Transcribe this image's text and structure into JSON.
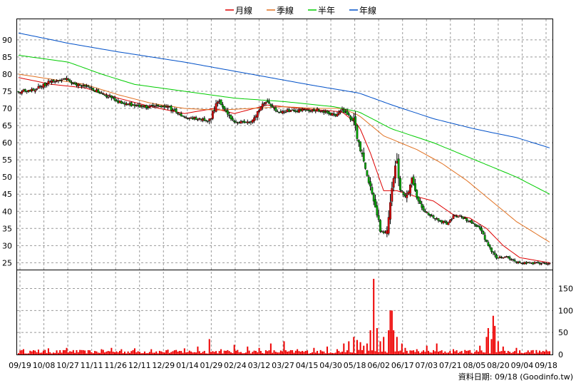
{
  "chart_data": [
    {
      "type": "candlestick",
      "legend": {
        "placement": "top-center",
        "entries": [
          {
            "name": "月線",
            "color": "#dd0000"
          },
          {
            "name": "季線",
            "color": "#e07020"
          },
          {
            "name": "半年",
            "color": "#00cc00"
          },
          {
            "name": "年線",
            "color": "#0050c8"
          }
        ]
      },
      "ylim": [
        23,
        96
      ],
      "yticks": [
        25,
        30,
        35,
        40,
        45,
        50,
        55,
        60,
        65,
        70,
        75,
        80,
        85,
        90
      ],
      "grid": true,
      "colors": {
        "up": "#dd0000",
        "down": "#00aa00",
        "border": "#000000",
        "grid": "#999999"
      },
      "x_tick_labels": [
        "09/19",
        "10/08",
        "10/27",
        "11/11",
        "11/26",
        "12/11",
        "12/29",
        "01/14",
        "01/29",
        "02/24",
        "03/12",
        "03/27",
        "04/15",
        "04/30",
        "05/18",
        "06/02",
        "06/17",
        "07/03",
        "07/21",
        "08/05",
        "08/20",
        "09/04",
        "09/18"
      ],
      "price_keypoints": [
        [
          0,
          75
        ],
        [
          10,
          75.5
        ],
        [
          20,
          78
        ],
        [
          28,
          78.5
        ],
        [
          36,
          77
        ],
        [
          50,
          74.5
        ],
        [
          62,
          71.5
        ],
        [
          75,
          70.5
        ],
        [
          90,
          70.5
        ],
        [
          100,
          67.5
        ],
        [
          115,
          66.5
        ],
        [
          120,
          72.5
        ],
        [
          130,
          66
        ],
        [
          140,
          66
        ],
        [
          145,
          70
        ],
        [
          150,
          72.5
        ],
        [
          155,
          69
        ],
        [
          170,
          69.5
        ],
        [
          180,
          69.5
        ],
        [
          190,
          68
        ],
        [
          195,
          69.5
        ],
        [
          202,
          66.5
        ],
        [
          205,
          60
        ],
        [
          210,
          50
        ],
        [
          215,
          42
        ],
        [
          218,
          34
        ],
        [
          222,
          34
        ],
        [
          226,
          50
        ],
        [
          228,
          55
        ],
        [
          230,
          46
        ],
        [
          234,
          44
        ],
        [
          237,
          49.5
        ],
        [
          240,
          44
        ],
        [
          245,
          40
        ],
        [
          250,
          38
        ],
        [
          258,
          36.5
        ],
        [
          262,
          38.5
        ],
        [
          266,
          38.5
        ],
        [
          272,
          37
        ],
        [
          278,
          35
        ],
        [
          282,
          31
        ],
        [
          288,
          26.5
        ],
        [
          294,
          26.5
        ],
        [
          300,
          25
        ],
        [
          315,
          24.8
        ],
        [
          320,
          25
        ]
      ],
      "moving_averages": [
        {
          "name": "月線",
          "values": [
            [
              0,
              79
            ],
            [
              20,
              77
            ],
            [
              40,
              76
            ],
            [
              60,
              73
            ],
            [
              80,
              70.5
            ],
            [
              100,
              68.5
            ],
            [
              118,
              70
            ],
            [
              130,
              68.5
            ],
            [
              150,
              71
            ],
            [
              170,
              70
            ],
            [
              195,
              69
            ],
            [
              205,
              65
            ],
            [
              212,
              57
            ],
            [
              220,
              46
            ],
            [
              228,
              46
            ],
            [
              238,
              44.5
            ],
            [
              250,
              43
            ],
            [
              262,
              39
            ],
            [
              272,
              38
            ],
            [
              282,
              35
            ],
            [
              292,
              30
            ],
            [
              302,
              26.5
            ],
            [
              320,
              25
            ]
          ]
        },
        {
          "name": "季線",
          "values": [
            [
              0,
              80
            ],
            [
              20,
              78.5
            ],
            [
              40,
              77
            ],
            [
              60,
              74
            ],
            [
              80,
              71.5
            ],
            [
              100,
              70
            ],
            [
              120,
              69.5
            ],
            [
              140,
              70
            ],
            [
              160,
              70.5
            ],
            [
              180,
              70
            ],
            [
              195,
              70
            ],
            [
              205,
              68
            ],
            [
              220,
              62
            ],
            [
              240,
              58
            ],
            [
              255,
              54
            ],
            [
              270,
              49
            ],
            [
              285,
              43
            ],
            [
              300,
              37
            ],
            [
              320,
              31
            ]
          ]
        },
        {
          "name": "半年",
          "values": [
            [
              0,
              85.5
            ],
            [
              30,
              83.5
            ],
            [
              50,
              80
            ],
            [
              70,
              77
            ],
            [
              100,
              75
            ],
            [
              130,
              73
            ],
            [
              160,
              72
            ],
            [
              190,
              70.5
            ],
            [
              205,
              69
            ],
            [
              225,
              64
            ],
            [
              250,
              60
            ],
            [
              275,
              55
            ],
            [
              300,
              50
            ],
            [
              320,
              45
            ]
          ]
        },
        {
          "name": "年線",
          "values": [
            [
              0,
              92
            ],
            [
              30,
              89
            ],
            [
              60,
              86.5
            ],
            [
              100,
              83.5
            ],
            [
              140,
              80
            ],
            [
              180,
              76.5
            ],
            [
              205,
              74.5
            ],
            [
              225,
              71
            ],
            [
              250,
              67
            ],
            [
              275,
              64
            ],
            [
              300,
              61.5
            ],
            [
              320,
              58.5
            ]
          ]
        }
      ]
    },
    {
      "type": "bar",
      "ylim": [
        0,
        180
      ],
      "yticks": [
        0,
        50,
        100,
        150
      ],
      "ytick_labels": [
        "0",
        "50",
        "100",
        "150"
      ],
      "color": "#ee0000",
      "base_volume": 7,
      "spikes": [
        [
          3,
          12
        ],
        [
          12,
          11
        ],
        [
          18,
          14
        ],
        [
          29,
          15
        ],
        [
          33,
          10
        ],
        [
          40,
          9
        ],
        [
          50,
          12
        ],
        [
          56,
          15
        ],
        [
          62,
          12
        ],
        [
          70,
          14
        ],
        [
          80,
          12
        ],
        [
          90,
          11
        ],
        [
          100,
          14
        ],
        [
          108,
          18
        ],
        [
          115,
          35
        ],
        [
          122,
          12
        ],
        [
          130,
          22
        ],
        [
          138,
          18
        ],
        [
          145,
          15
        ],
        [
          152,
          25
        ],
        [
          160,
          30
        ],
        [
          168,
          12
        ],
        [
          178,
          15
        ],
        [
          186,
          18
        ],
        [
          192,
          12
        ],
        [
          196,
          25
        ],
        [
          199,
          30
        ],
        [
          202,
          40
        ],
        [
          204,
          33
        ],
        [
          206,
          28
        ],
        [
          208,
          20
        ],
        [
          210,
          25
        ],
        [
          212,
          55
        ],
        [
          214,
          172
        ],
        [
          216,
          60
        ],
        [
          218,
          30
        ],
        [
          220,
          40
        ],
        [
          223,
          55
        ],
        [
          224,
          100
        ],
        [
          225,
          100
        ],
        [
          226,
          55
        ],
        [
          228,
          40
        ],
        [
          231,
          25
        ],
        [
          233,
          15
        ],
        [
          240,
          12
        ],
        [
          246,
          20
        ],
        [
          252,
          25
        ],
        [
          262,
          12
        ],
        [
          272,
          10
        ],
        [
          278,
          20
        ],
        [
          282,
          40
        ],
        [
          283,
          60
        ],
        [
          285,
          35
        ],
        [
          286,
          88
        ],
        [
          287,
          65
        ],
        [
          289,
          30
        ],
        [
          292,
          18
        ],
        [
          300,
          15
        ],
        [
          310,
          10
        ],
        [
          316,
          8
        ]
      ]
    }
  ],
  "footer": {
    "label": "資料日期: 09/18 (Goodinfo.tw)"
  }
}
